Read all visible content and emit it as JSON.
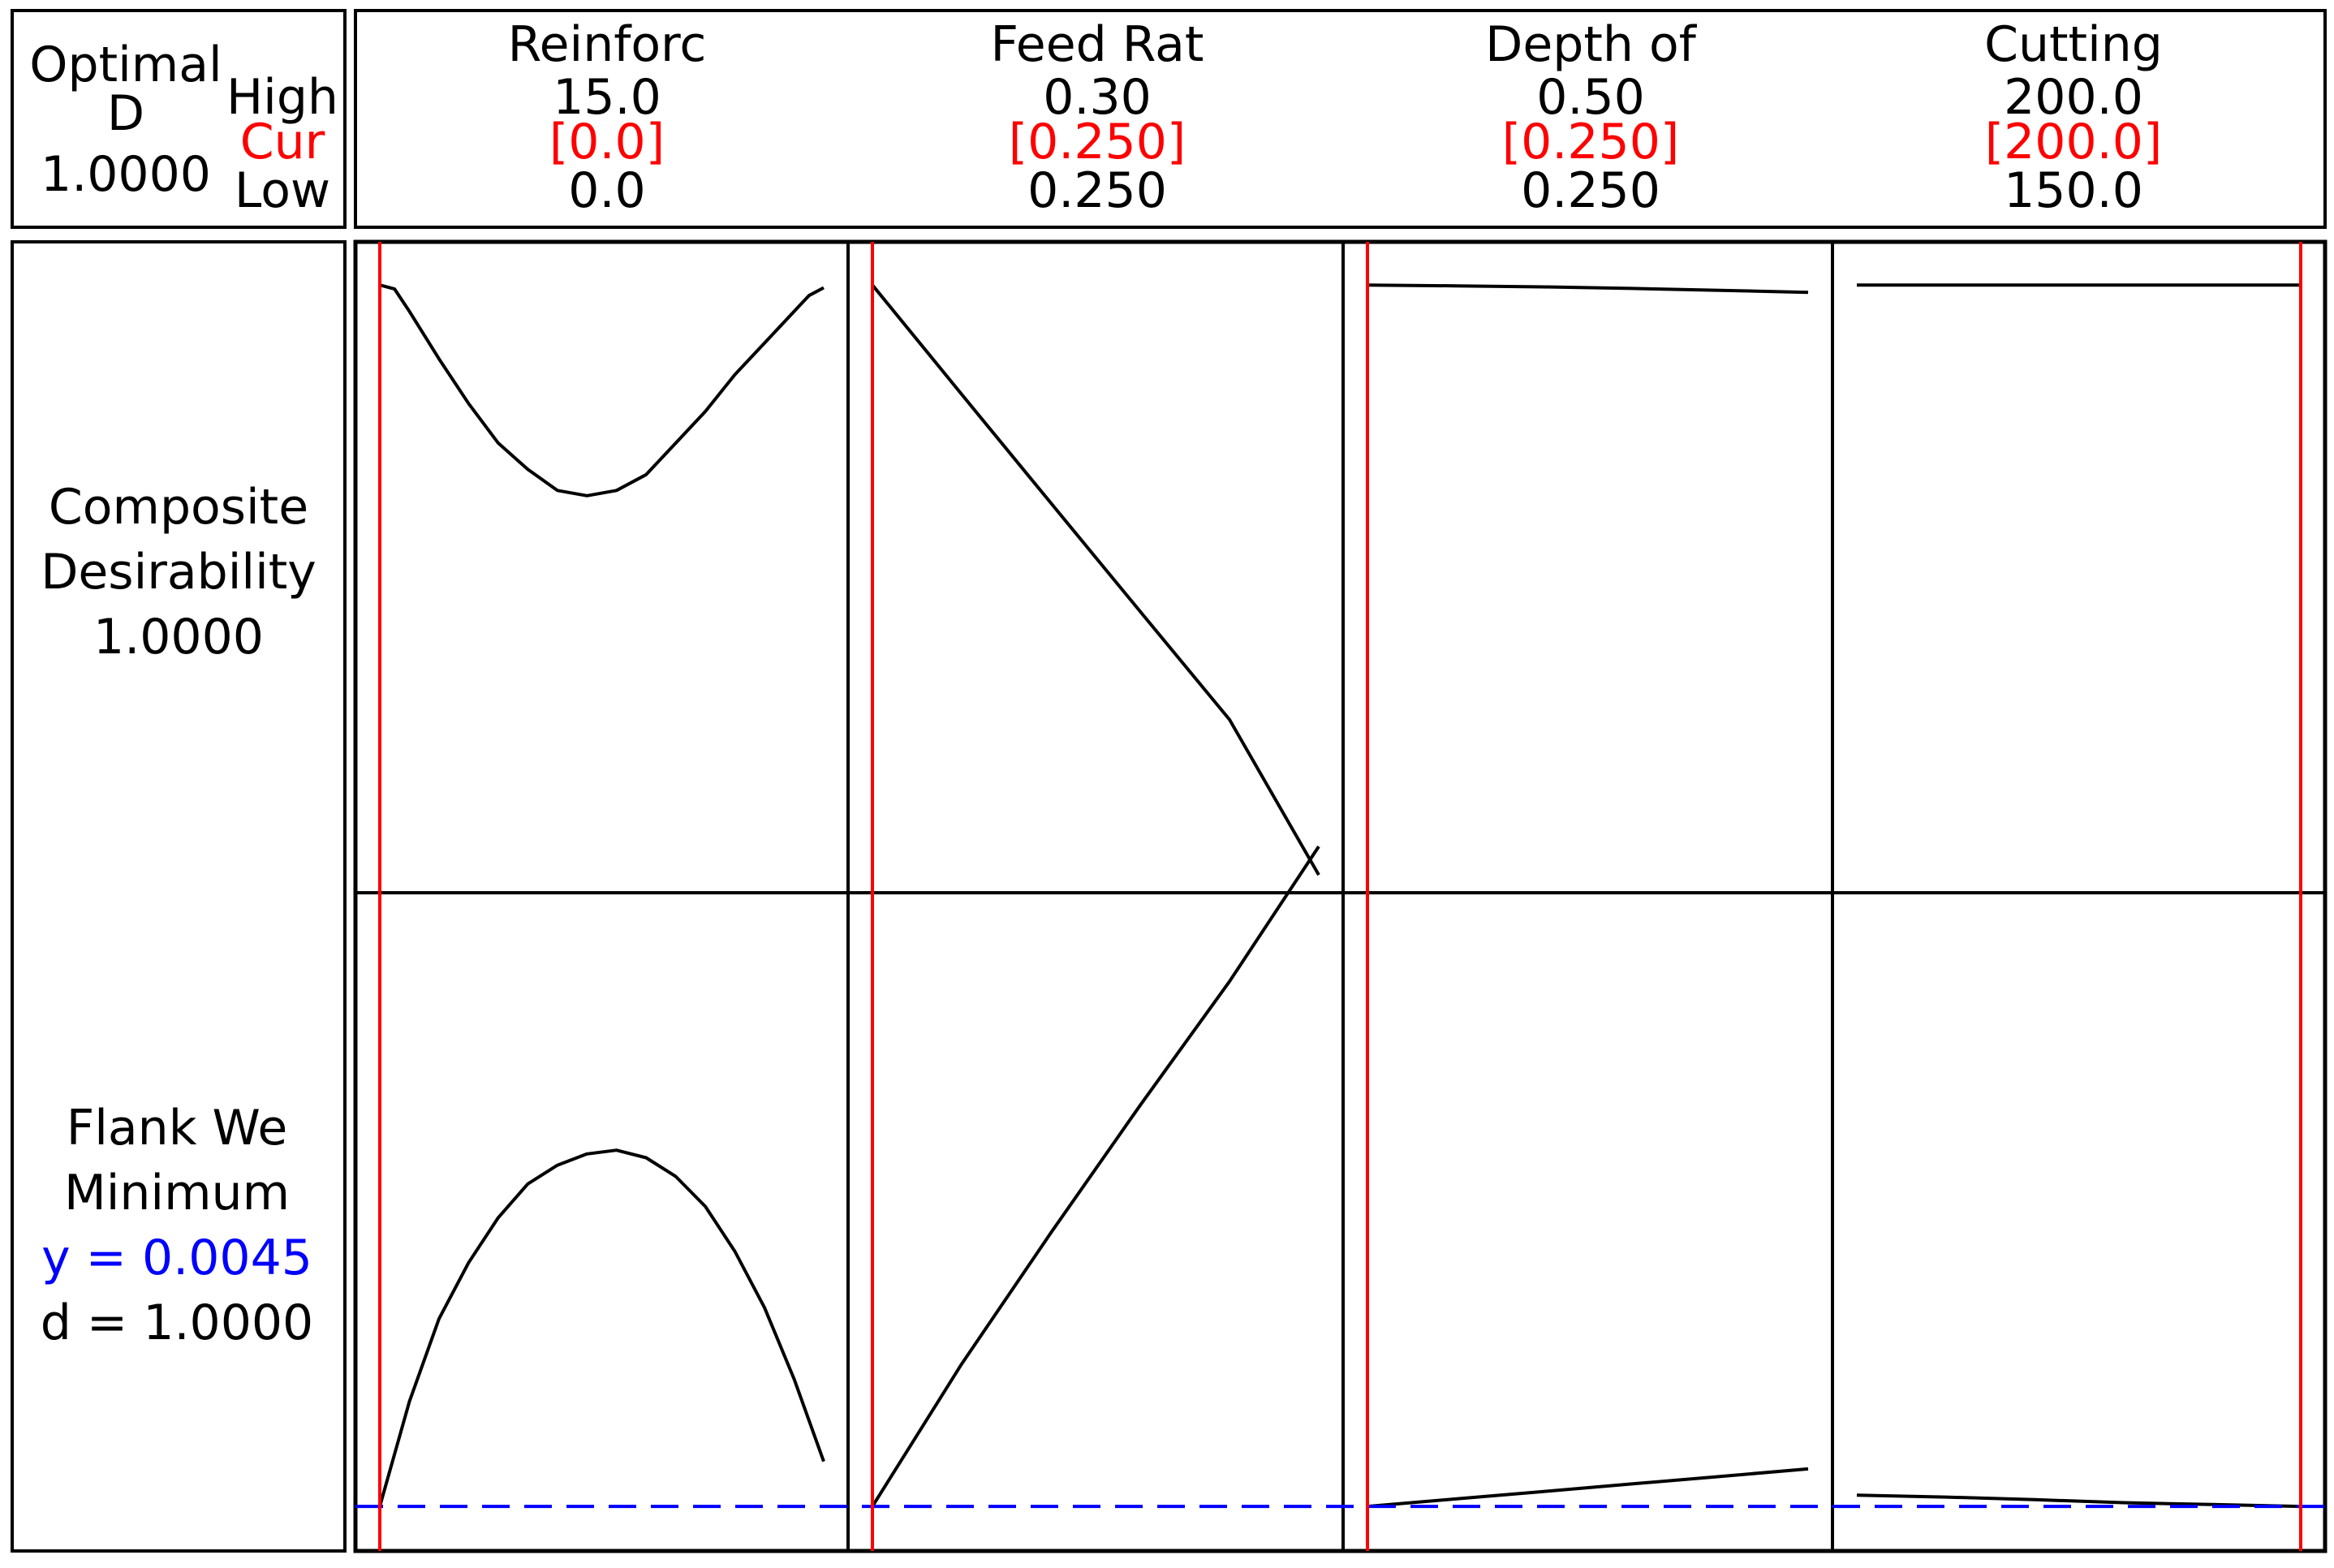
{
  "colors": {
    "current": "#ff0000",
    "target": "#0000ff",
    "line": "#000000",
    "background": "#ffffff"
  },
  "header": {
    "optimal": "Optimal",
    "d_label": "D",
    "d_value": "1.0000",
    "high_label": "High",
    "cur_label": "Cur",
    "low_label": "Low"
  },
  "factors": [
    {
      "name": "Reinforc",
      "high": "15.0",
      "cur": "[0.0]",
      "low": "0.0"
    },
    {
      "name": "Feed Rat",
      "high": "0.30",
      "cur": "[0.250]",
      "low": "0.250"
    },
    {
      "name": "Depth of",
      "high": "0.50",
      "cur": "[0.250]",
      "low": "0.250"
    },
    {
      "name": "Cutting",
      "high": "200.0",
      "cur": "[200.0]",
      "low": "150.0"
    }
  ],
  "rows": [
    {
      "lines": [
        "Composite",
        "Desirability",
        "1.0000"
      ],
      "target": ""
    },
    {
      "lines": [
        "Flank We",
        "Minimum"
      ],
      "target": "y = 0.0045",
      "d": "d = 1.0000"
    }
  ],
  "chart_data": {
    "type": "line",
    "current_settings": [
      0.0,
      0.25,
      0.25,
      200.0
    ],
    "factor_ranges": [
      [
        0.0,
        15.0
      ],
      [
        0.25,
        0.3
      ],
      [
        0.25,
        0.5
      ],
      [
        150.0,
        200.0
      ]
    ],
    "composite_desirability": {
      "ylim": [
        0.78,
        1.005
      ],
      "series": [
        {
          "x": [
            0,
            0.5,
            1,
            2,
            3,
            4,
            5,
            6,
            7,
            8,
            9,
            10,
            11,
            12,
            13,
            14,
            14.5,
            15
          ],
          "y": [
            1.0,
            0.9985,
            0.99,
            0.972,
            0.955,
            0.94,
            0.93,
            0.922,
            0.92,
            0.922,
            0.928,
            0.94,
            0.952,
            0.966,
            0.978,
            0.99,
            0.996,
            0.999
          ]
        },
        {
          "x": [
            0.25,
            0.26,
            0.27,
            0.28,
            0.29,
            0.3
          ],
          "y": [
            1.0,
            0.9585,
            0.9172,
            0.876,
            0.835,
            0.776
          ]
        },
        {
          "x": [
            0.25,
            0.3,
            0.35,
            0.4,
            0.45,
            0.5
          ],
          "y": [
            1.0,
            0.9997,
            0.9993,
            0.9987,
            0.998,
            0.9972
          ]
        },
        {
          "x": [
            150,
            160,
            170,
            180,
            190,
            200
          ],
          "y": [
            1.0,
            1.0,
            1.0,
            1.0,
            1.0,
            1.0
          ]
        }
      ]
    },
    "flank_wear": {
      "ylim": [
        0.0042,
        0.02
      ],
      "target_y": 0.0045,
      "series": [
        {
          "x": [
            0,
            1,
            2,
            3,
            4,
            5,
            6,
            7,
            8,
            9,
            10,
            11,
            12,
            13,
            14,
            15
          ],
          "y": [
            0.0045,
            0.0073,
            0.0095,
            0.011,
            0.0122,
            0.0131,
            0.0136,
            0.0139,
            0.014,
            0.0138,
            0.0133,
            0.0125,
            0.0113,
            0.0098,
            0.0079,
            0.0057
          ]
        },
        {
          "x": [
            0.25,
            0.26,
            0.27,
            0.28,
            0.29,
            0.3
          ],
          "y": [
            0.0045,
            0.0083,
            0.0118,
            0.0152,
            0.0185,
            0.0221
          ]
        },
        {
          "x": [
            0.25,
            0.3,
            0.35,
            0.4,
            0.45,
            0.5
          ],
          "y": [
            0.0045,
            0.0047,
            0.0049,
            0.0051,
            0.0053,
            0.0055
          ]
        },
        {
          "x": [
            150,
            160,
            170,
            180,
            190,
            200
          ],
          "y": [
            0.0048,
            0.00475,
            0.00468,
            0.0046,
            0.00455,
            0.0045
          ]
        }
      ]
    }
  }
}
